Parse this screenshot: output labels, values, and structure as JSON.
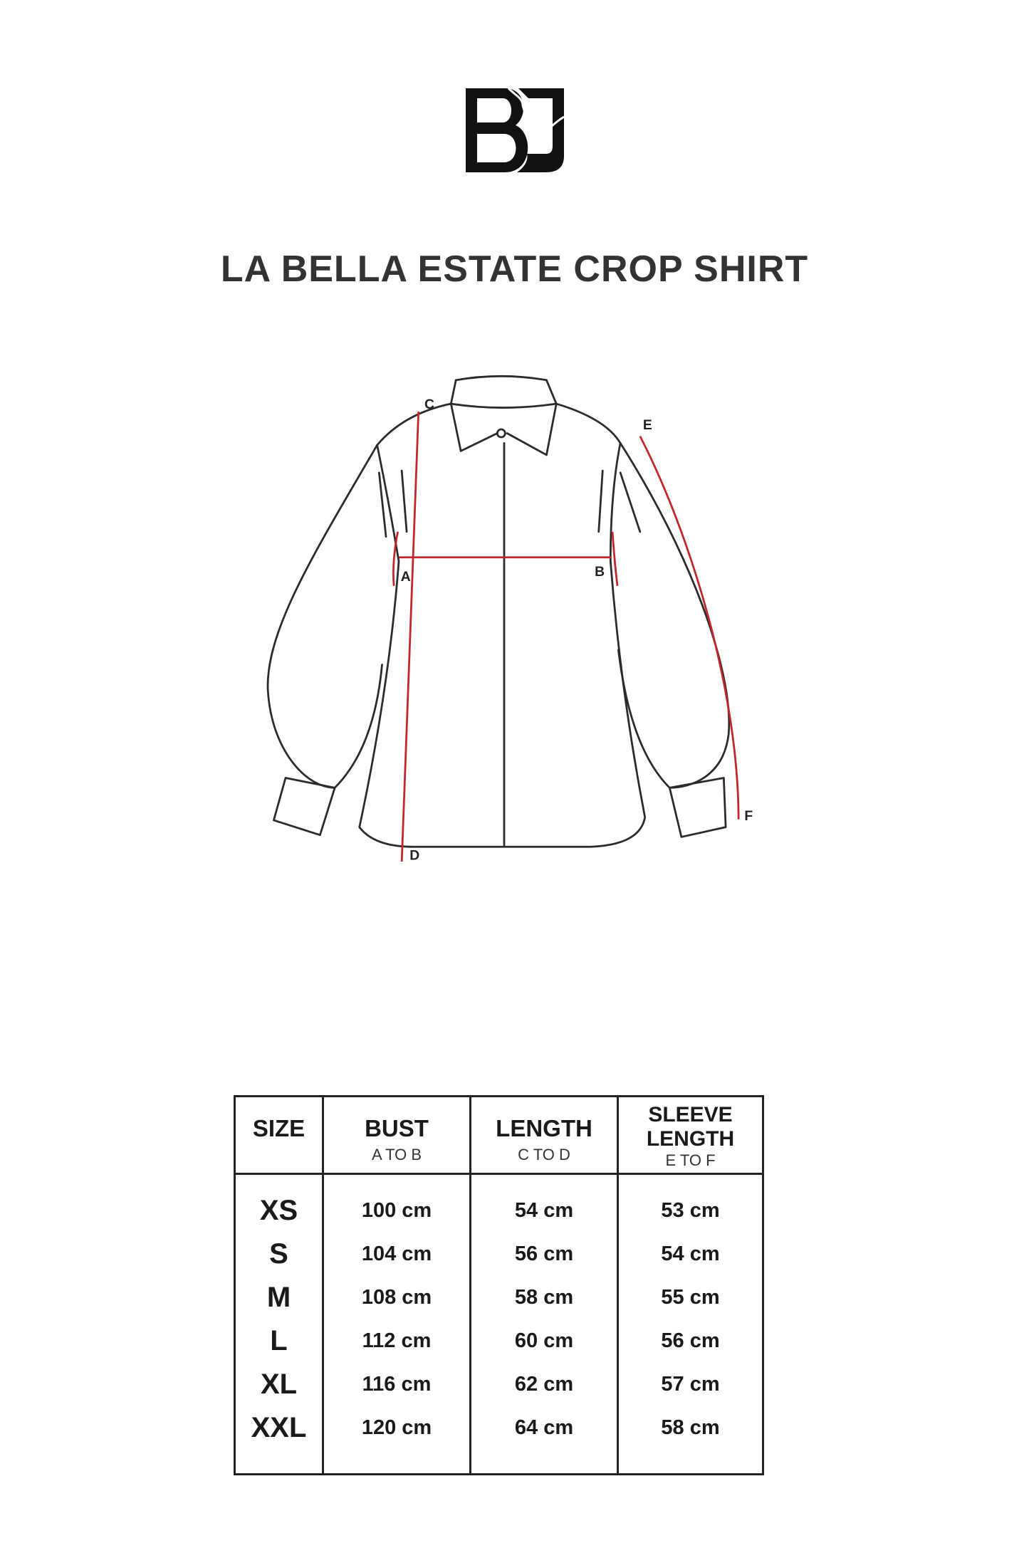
{
  "brand": {
    "logo_text": "BJ"
  },
  "title": "LA BELLA ESTATE CROP SHIRT",
  "diagram": {
    "labels": {
      "a": "A",
      "b": "B",
      "c": "C",
      "d": "D",
      "e": "E",
      "f": "F"
    },
    "line_color": "#c0272d",
    "outline_color": "#2b2b2b"
  },
  "table": {
    "headers": [
      {
        "title": "SIZE",
        "sub": ""
      },
      {
        "title": "BUST",
        "sub": "A TO B"
      },
      {
        "title": "LENGTH",
        "sub": "C TO D"
      },
      {
        "title": "SLEEVE LENGTH",
        "sub": "E TO F"
      }
    ],
    "rows": [
      {
        "size": "XS",
        "bust": "100 cm",
        "length": "54 cm",
        "sleeve": "53 cm"
      },
      {
        "size": "S",
        "bust": "104 cm",
        "length": "56 cm",
        "sleeve": "54 cm"
      },
      {
        "size": "M",
        "bust": "108 cm",
        "length": "58 cm",
        "sleeve": "55 cm"
      },
      {
        "size": "L",
        "bust": "112 cm",
        "length": "60 cm",
        "sleeve": "56 cm"
      },
      {
        "size": "XL",
        "bust": "116 cm",
        "length": "62 cm",
        "sleeve": "57 cm"
      },
      {
        "size": "XXL",
        "bust": "120 cm",
        "length": "64 cm",
        "sleeve": "58 cm"
      }
    ]
  }
}
